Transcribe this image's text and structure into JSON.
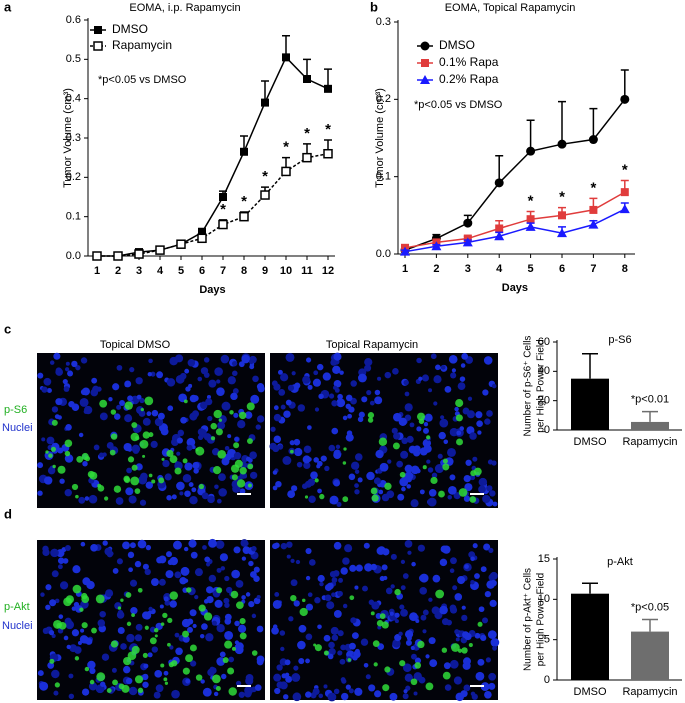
{
  "chart_data": [
    {
      "type": "line",
      "panel_label": "a",
      "title": "EOMA, i.p. Rapamycin",
      "xlabel": "Days",
      "ylabel": "Tumor Volume (cm³)",
      "categories": [
        "1",
        "2",
        "3",
        "4",
        "5",
        "6",
        "7",
        "8",
        "9",
        "10",
        "11",
        "12"
      ],
      "ylim": [
        0,
        0.6
      ],
      "yticks": [
        {
          "value": 0,
          "label": "0.0"
        },
        0.1,
        0.2,
        0.3,
        0.4,
        0.5,
        0.6
      ],
      "annotation": "*p<0.05 vs DMSO",
      "star": "*",
      "star_series": 1,
      "star_categories": [
        6,
        7,
        8,
        9,
        10,
        11
      ],
      "series": [
        {
          "name": "DMSO",
          "color": "#000000",
          "marker": "square",
          "dashed": false,
          "values": [
            0,
            0,
            0.01,
            0.015,
            0.03,
            0.06,
            0.15,
            0.265,
            0.39,
            0.505,
            0.45,
            0.425
          ],
          "errors": [
            0,
            0,
            0.002,
            0.003,
            0.005,
            0.01,
            0.015,
            0.04,
            0.055,
            0.055,
            0.05,
            0.05
          ]
        },
        {
          "name": "Rapamycin",
          "color": "#000000",
          "marker": "square-open",
          "dashed": true,
          "values": [
            0,
            0,
            0.005,
            0.015,
            0.03,
            0.045,
            0.08,
            0.1,
            0.155,
            0.215,
            0.25,
            0.26
          ],
          "errors": [
            0,
            0,
            0.002,
            0.003,
            0.005,
            0.008,
            0.012,
            0.012,
            0.02,
            0.035,
            0.035,
            0.035
          ]
        }
      ]
    },
    {
      "type": "line",
      "panel_label": "b",
      "title": "EOMA, Topical Rapamycin",
      "xlabel": "Days",
      "ylabel": "Tumor Volume (cm³)",
      "categories": [
        "1",
        "2",
        "3",
        "4",
        "5",
        "6",
        "7",
        "8"
      ],
      "ylim": [
        0,
        0.3
      ],
      "yticks": [
        {
          "value": 0,
          "label": "0.0"
        },
        0.1,
        0.2,
        0.3
      ],
      "annotation": "*p<0.05 vs DMSO",
      "star": "*",
      "star_series": 1,
      "star_categories": [
        4,
        5,
        6,
        7
      ],
      "series": [
        {
          "name": "DMSO",
          "color": "#000000",
          "marker": "circle",
          "dashed": false,
          "values": [
            0.005,
            0.02,
            0.04,
            0.092,
            0.133,
            0.142,
            0.148,
            0.2
          ],
          "errors": [
            0.002,
            0.005,
            0.01,
            0.035,
            0.04,
            0.055,
            0.04,
            0.038
          ]
        },
        {
          "name": "0.1% Rapa",
          "color": "#e03c3c",
          "marker": "square",
          "dashed": false,
          "values": [
            0.008,
            0.015,
            0.02,
            0.033,
            0.045,
            0.05,
            0.057,
            0.08
          ],
          "errors": [
            0.002,
            0.003,
            0.003,
            0.01,
            0.01,
            0.01,
            0.015,
            0.015
          ]
        },
        {
          "name": "0.2% Rapa",
          "color": "#1a1aff",
          "marker": "triangle",
          "dashed": false,
          "values": [
            0.003,
            0.01,
            0.015,
            0.023,
            0.035,
            0.027,
            0.038,
            0.058
          ],
          "errors": [
            0.002,
            0.002,
            0.003,
            0.005,
            0.005,
            0.008,
            0.005,
            0.008
          ]
        }
      ]
    },
    {
      "type": "bar",
      "panel_label": "c",
      "title": "p-S6",
      "ylabel": [
        "Number of p-S6⁺ Cells",
        "per High Power Field"
      ],
      "categories": [
        "DMSO",
        "Rapamycin"
      ],
      "colors": [
        "#000000",
        "#6e6e6e"
      ],
      "values": [
        35,
        5.5
      ],
      "errors": [
        17,
        7
      ],
      "ylim": [
        0,
        60
      ],
      "yticks": [
        0,
        20,
        40,
        60
      ],
      "annotation": "*p<0.01"
    },
    {
      "type": "bar",
      "panel_label": "d",
      "title": "p-Akt",
      "ylabel": [
        "Number of p-Akt⁺ Cells",
        "per High Power Field"
      ],
      "categories": [
        "DMSO",
        "Rapamycin"
      ],
      "colors": [
        "#000000",
        "#6e6e6e"
      ],
      "values": [
        10.7,
        6
      ],
      "errors": [
        1.3,
        1.5
      ],
      "ylim": [
        0,
        15
      ],
      "yticks": [
        0,
        5,
        10,
        15
      ],
      "annotation": "*p<0.05"
    }
  ],
  "images": {
    "column_titles": [
      "Topical DMSO",
      "Topical Rapamycin"
    ],
    "rows": [
      {
        "stain": "p-S6",
        "counterstain": "Nuclei"
      },
      {
        "stain": "p-Akt",
        "counterstain": "Nuclei"
      }
    ]
  }
}
